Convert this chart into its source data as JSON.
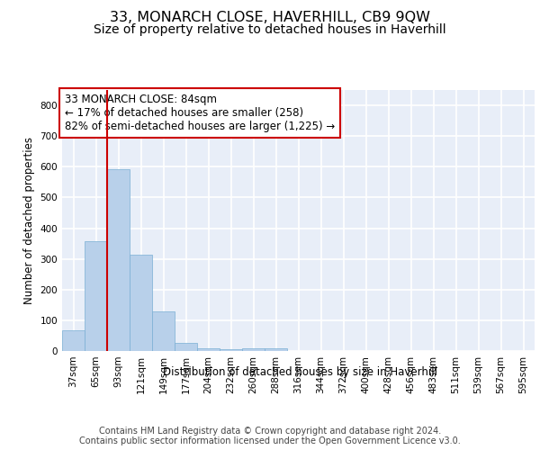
{
  "title1": "33, MONARCH CLOSE, HAVERHILL, CB9 9QW",
  "title2": "Size of property relative to detached houses in Haverhill",
  "xlabel": "Distribution of detached houses by size in Haverhill",
  "ylabel": "Number of detached properties",
  "footer1": "Contains HM Land Registry data © Crown copyright and database right 2024.",
  "footer2": "Contains public sector information licensed under the Open Government Licence v3.0.",
  "annotation_line1": "33 MONARCH CLOSE: 84sqm",
  "annotation_line2": "← 17% of detached houses are smaller (258)",
  "annotation_line3": "82% of semi-detached houses are larger (1,225) →",
  "bar_color": "#b8d0ea",
  "bar_edge_color": "#7aafd4",
  "vline_color": "#cc0000",
  "annotation_box_edge_color": "#cc0000",
  "background_color": "#e8eef8",
  "grid_color": "#ffffff",
  "categories": [
    "37sqm",
    "65sqm",
    "93sqm",
    "121sqm",
    "149sqm",
    "177sqm",
    "204sqm",
    "232sqm",
    "260sqm",
    "288sqm",
    "316sqm",
    "344sqm",
    "372sqm",
    "400sqm",
    "428sqm",
    "456sqm",
    "483sqm",
    "511sqm",
    "539sqm",
    "567sqm",
    "595sqm"
  ],
  "values": [
    67,
    359,
    592,
    314,
    130,
    26,
    8,
    7,
    8,
    8,
    0,
    0,
    0,
    0,
    0,
    0,
    0,
    0,
    0,
    0,
    0
  ],
  "ylim": [
    0,
    850
  ],
  "yticks": [
    0,
    100,
    200,
    300,
    400,
    500,
    600,
    700,
    800
  ],
  "vline_x_index": 1.5,
  "title_fontsize": 11.5,
  "subtitle_fontsize": 10,
  "axis_label_fontsize": 8.5,
  "tick_fontsize": 7.5,
  "annotation_fontsize": 8.5,
  "footer_fontsize": 7
}
